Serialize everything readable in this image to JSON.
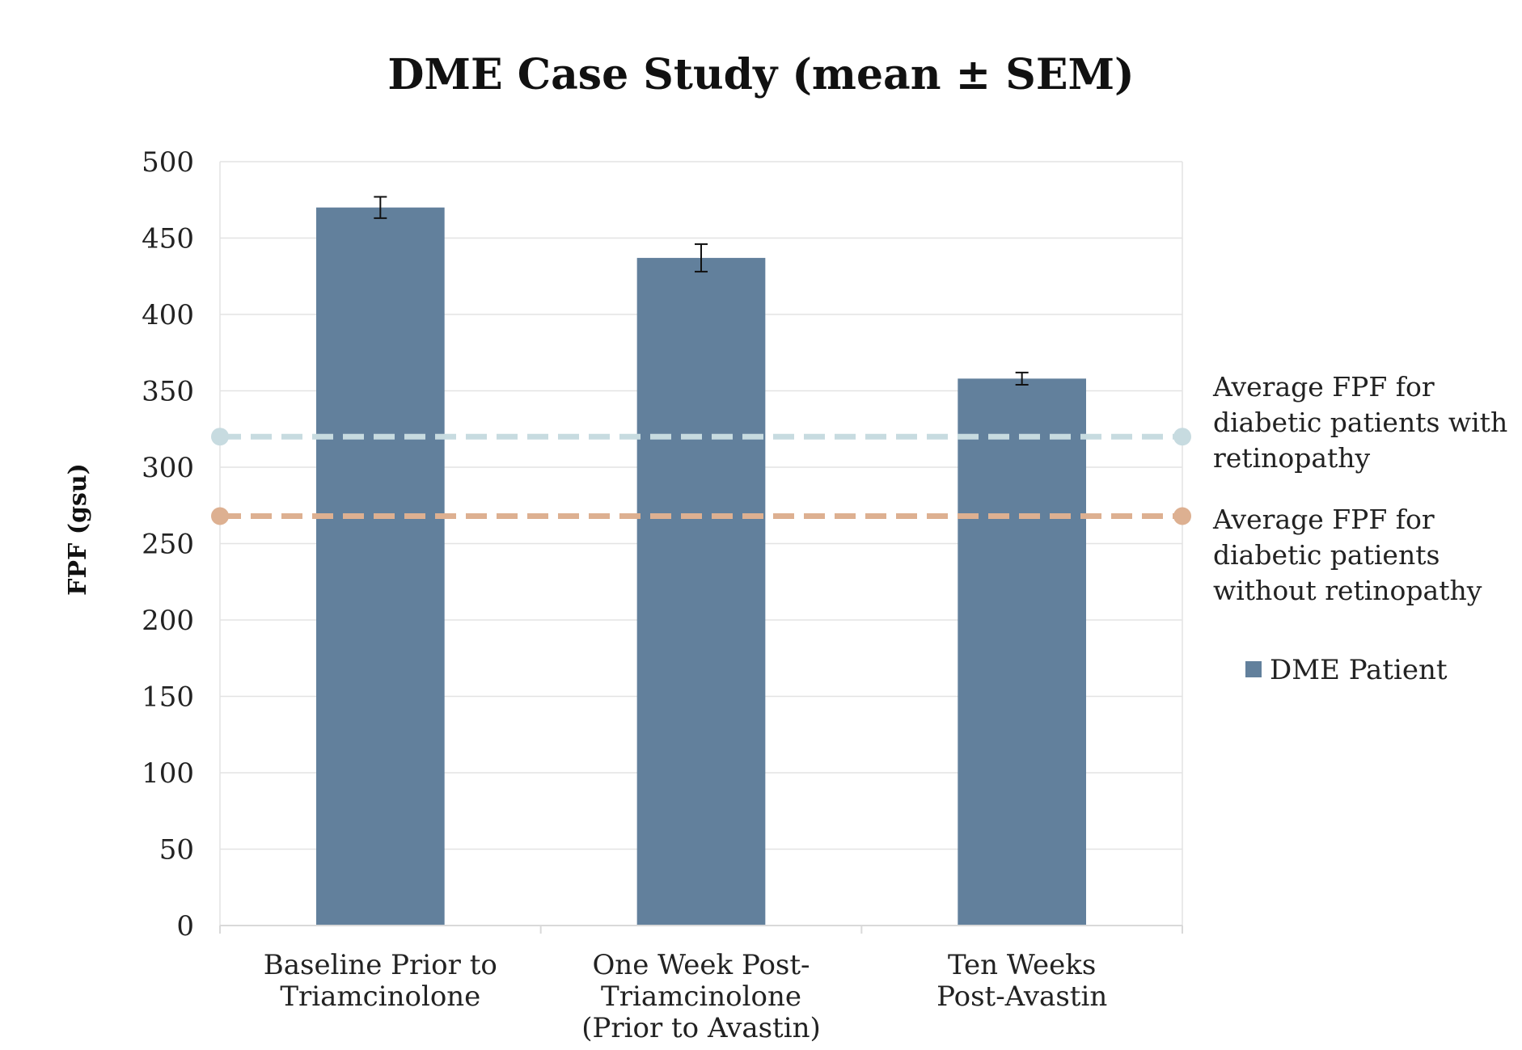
{
  "chart_data": {
    "type": "bar",
    "title": "DME Case Study (mean ± SEM)",
    "xlabel": "",
    "ylabel": "FPF (gsu)",
    "ylim": [
      0,
      500
    ],
    "yticks": [
      0,
      50,
      100,
      150,
      200,
      250,
      300,
      350,
      400,
      450,
      500
    ],
    "grid": true,
    "categories": [
      [
        "Baseline Prior to",
        "Triamcinolone"
      ],
      [
        "One Week Post-",
        "Triamcinolone",
        "(Prior to Avastin)"
      ],
      [
        "Ten Weeks",
        "Post-Avastin"
      ]
    ],
    "series": [
      {
        "name": "DME Patient",
        "color": "#62809c",
        "values": [
          470,
          437,
          358
        ],
        "sem": [
          7,
          9,
          4
        ]
      }
    ],
    "reference_lines": [
      {
        "label": [
          "Average FPF for",
          "diabetic patients with",
          "retinopathy"
        ],
        "value": 320,
        "color": "#c7dbe0",
        "style": "dashed"
      },
      {
        "label": [
          "Average FPF for",
          "diabetic patients",
          "without retinopathy"
        ],
        "value": 268,
        "color": "#ddb091",
        "style": "dashed"
      }
    ],
    "legend": {
      "placement": "right",
      "entries": [
        "DME Patient"
      ]
    }
  }
}
